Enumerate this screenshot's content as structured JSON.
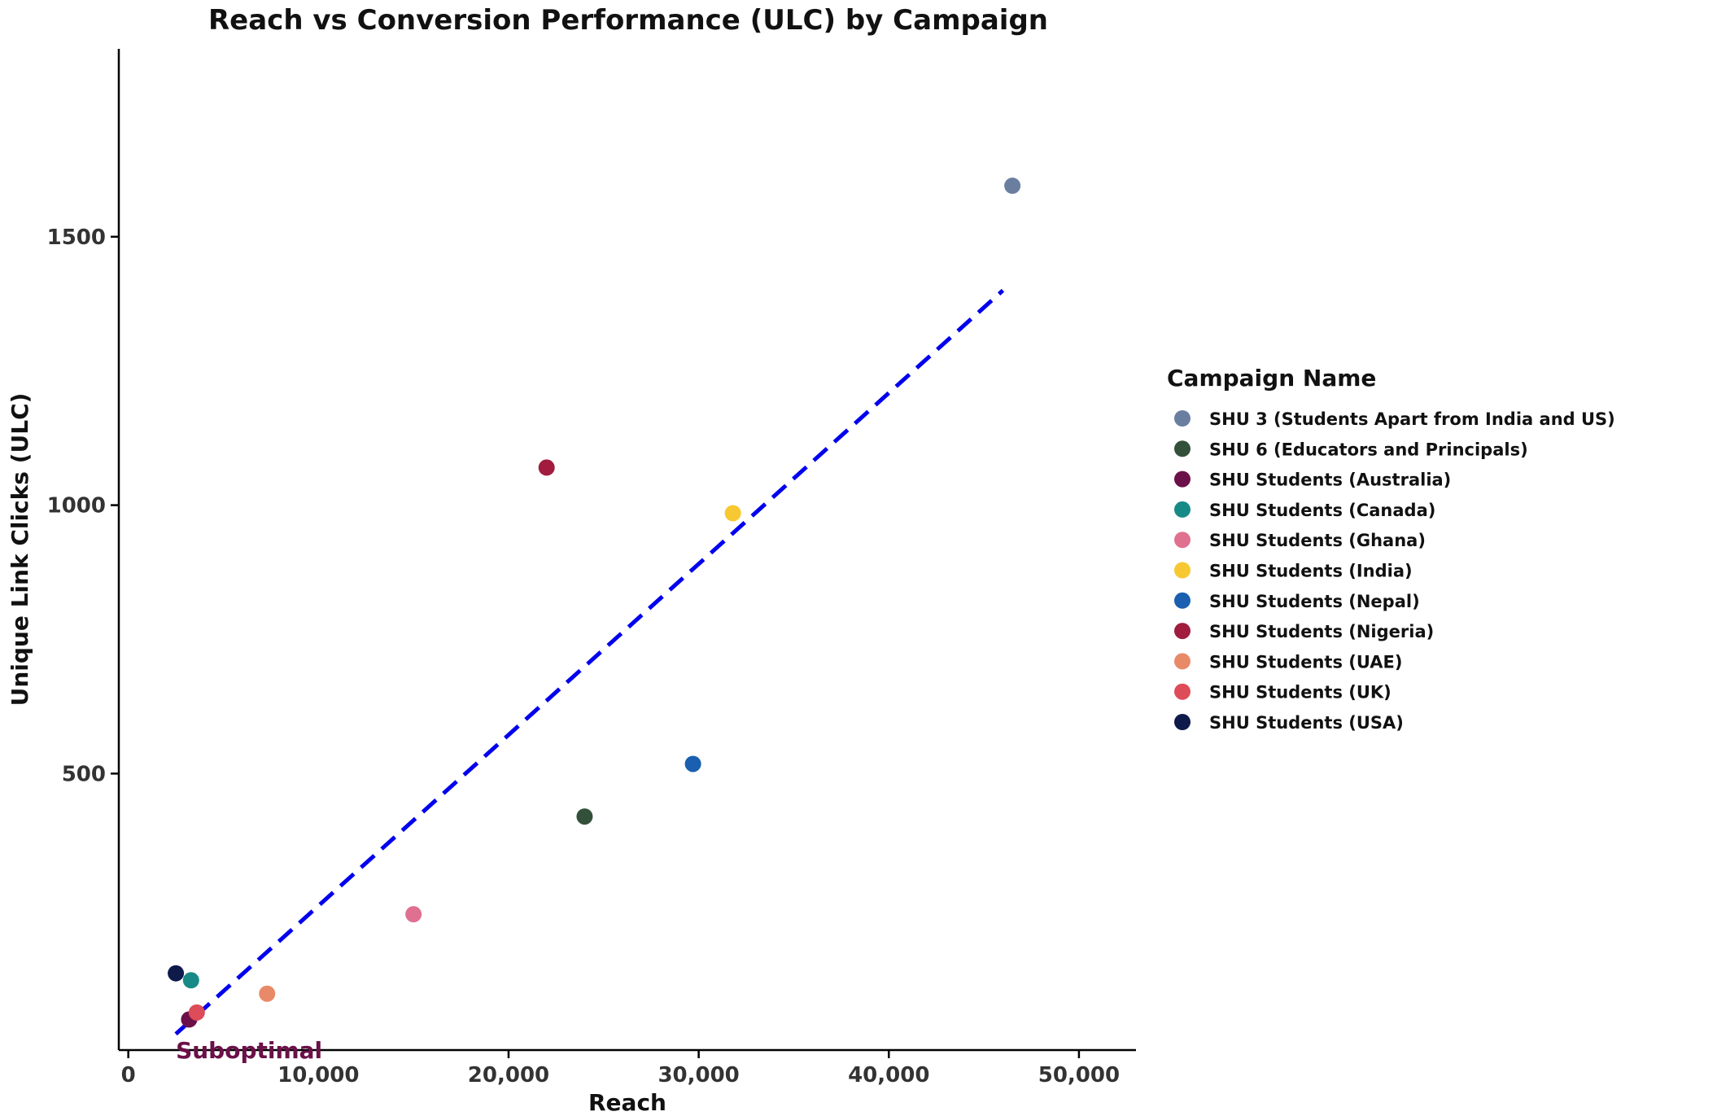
{
  "chart_data": {
    "type": "scatter",
    "title": "Reach vs Conversion Performance (ULC) by Campaign",
    "xlabel": "Reach",
    "ylabel": "Unique Link Clicks (ULC)",
    "xlim": [
      -500,
      53000
    ],
    "ylim": [
      -15,
      1850
    ],
    "x_ticks": [
      0,
      10000,
      20000,
      30000,
      40000,
      50000
    ],
    "x_tick_labels": [
      "0",
      "10,000",
      "20,000",
      "30,000",
      "40,000",
      "50,000"
    ],
    "y_ticks": [
      500,
      1000,
      1500
    ],
    "y_tick_labels": [
      "500",
      "1000",
      "1500"
    ],
    "legend_title": "Campaign Name",
    "legend_position": "right",
    "grid": false,
    "series": [
      {
        "name": "SHU 3 (Students Apart from India and US)",
        "color": "#6a7fa0",
        "x": 46500,
        "y": 1595
      },
      {
        "name": "SHU 6 (Educators and Principals)",
        "color": "#33513a",
        "x": 24000,
        "y": 420
      },
      {
        "name": "SHU Students (Australia)",
        "color": "#6b1048",
        "x": 3200,
        "y": 42
      },
      {
        "name": "SHU Students (Canada)",
        "color": "#178a87",
        "x": 3300,
        "y": 115
      },
      {
        "name": "SHU Students (Ghana)",
        "color": "#e07090",
        "x": 15000,
        "y": 238
      },
      {
        "name": "SHU Students (India)",
        "color": "#f8c832",
        "x": 31800,
        "y": 985
      },
      {
        "name": "SHU Students (Nepal)",
        "color": "#1a5fb0",
        "x": 29700,
        "y": 518
      },
      {
        "name": "SHU Students (Nigeria)",
        "color": "#a11c3e",
        "x": 22000,
        "y": 1070
      },
      {
        "name": "SHU Students (UAE)",
        "color": "#e88a68",
        "x": 7300,
        "y": 90
      },
      {
        "name": "SHU Students (UK)",
        "color": "#dd4c58",
        "x": 3600,
        "y": 55
      },
      {
        "name": "SHU Students (USA)",
        "color": "#0e1a4a",
        "x": 2500,
        "y": 128
      }
    ],
    "trend_line": {
      "color": "#0000ee",
      "style": "dashed",
      "x": [
        2500,
        46000
      ],
      "y": [
        15,
        1400
      ]
    },
    "annotations": [
      {
        "text": "Suboptimal",
        "x": 2500,
        "y": -15,
        "color": "#6b1048"
      }
    ]
  }
}
